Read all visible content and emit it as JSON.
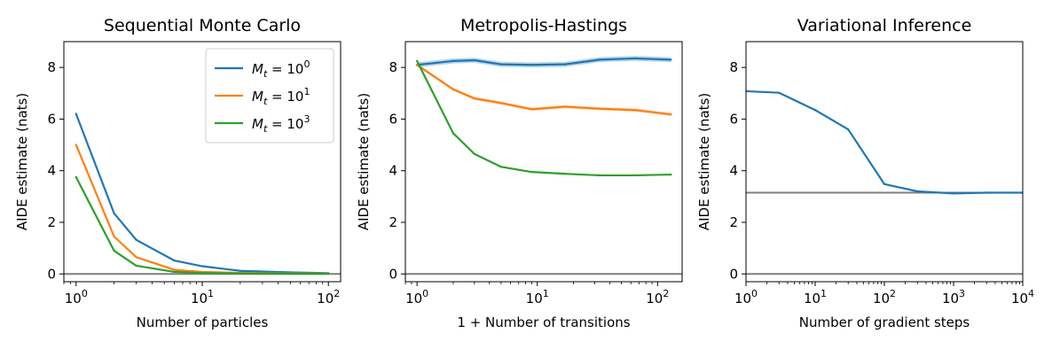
{
  "figure": {
    "colors": {
      "blue": "#1f77b4",
      "orange": "#ff7f0e",
      "green": "#2ca02c",
      "ref_line": "#7f7f7f"
    },
    "legend_location": "top-right of first panel"
  },
  "chart_data": [
    {
      "type": "line",
      "title": "Sequential Monte Carlo",
      "xlabel": "Number of particles",
      "ylabel": "AIDE estimate (nats)",
      "xscale": "log",
      "xlim": [
        0.8,
        125
      ],
      "ylim": [
        -0.3,
        9
      ],
      "yticks": [
        0,
        2,
        4,
        6,
        8
      ],
      "xticks": [
        {
          "value": 1,
          "base": "10",
          "exp": "0"
        },
        {
          "value": 10,
          "base": "10",
          "exp": "1"
        },
        {
          "value": 100,
          "base": "10",
          "exp": "2"
        }
      ],
      "reference_lines": [
        0
      ],
      "legend": {
        "entries": [
          {
            "label_prefix": "M",
            "label_sub": "t",
            "label_mid": " = 10",
            "label_sup": "0",
            "color": "#1f77b4"
          },
          {
            "label_prefix": "M",
            "label_sub": "t",
            "label_mid": " = 10",
            "label_sup": "1",
            "color": "#ff7f0e"
          },
          {
            "label_prefix": "M",
            "label_sub": "t",
            "label_mid": " = 10",
            "label_sup": "3",
            "color": "#2ca02c"
          }
        ]
      },
      "series": [
        {
          "color": "#1f77b4",
          "x": [
            1,
            2,
            3,
            6,
            10,
            20,
            50,
            100
          ],
          "y": [
            6.2,
            2.35,
            1.32,
            0.52,
            0.3,
            0.12,
            0.06,
            0.03
          ]
        },
        {
          "color": "#ff7f0e",
          "x": [
            1,
            2,
            3,
            6,
            10,
            20,
            50,
            100
          ],
          "y": [
            5.0,
            1.45,
            0.65,
            0.16,
            0.08,
            0.04,
            0.02,
            0.02
          ]
        },
        {
          "color": "#2ca02c",
          "x": [
            1,
            2,
            3,
            6,
            10,
            20,
            50,
            100
          ],
          "y": [
            3.75,
            0.9,
            0.32,
            0.08,
            0.04,
            0.02,
            0.01,
            0.01
          ]
        }
      ]
    },
    {
      "type": "line",
      "title": "Metropolis-Hastings",
      "xlabel": "1 + Number of transitions",
      "ylabel": "AIDE estimate (nats)",
      "xscale": "log",
      "xlim": [
        0.8,
        160
      ],
      "ylim": [
        -0.3,
        9
      ],
      "yticks": [
        0,
        2,
        4,
        6,
        8
      ],
      "xticks": [
        {
          "value": 1,
          "base": "10",
          "exp": "0"
        },
        {
          "value": 10,
          "base": "10",
          "exp": "1"
        },
        {
          "value": 100,
          "base": "10",
          "exp": "2"
        }
      ],
      "reference_lines": [
        0
      ],
      "series": [
        {
          "color": "#1f77b4",
          "band": 0.1,
          "x": [
            1,
            2,
            3,
            5,
            9,
            17,
            33,
            65,
            129
          ],
          "y": [
            8.1,
            8.25,
            8.28,
            8.12,
            8.1,
            8.12,
            8.3,
            8.35,
            8.3
          ]
        },
        {
          "color": "#ff7f0e",
          "band": 0.06,
          "x": [
            1,
            2,
            3,
            5,
            9,
            17,
            33,
            65,
            129
          ],
          "y": [
            8.1,
            7.15,
            6.8,
            6.62,
            6.38,
            6.48,
            6.4,
            6.35,
            6.18
          ]
        },
        {
          "color": "#2ca02c",
          "band": 0.03,
          "x": [
            1,
            2,
            3,
            5,
            9,
            17,
            33,
            65,
            129
          ],
          "y": [
            8.25,
            5.45,
            4.65,
            4.15,
            3.95,
            3.88,
            3.82,
            3.82,
            3.85
          ]
        }
      ]
    },
    {
      "type": "line",
      "title": "Variational Inference",
      "xlabel": "Number of gradient steps",
      "ylabel": "AIDE estimate (nats)",
      "xscale": "log",
      "xlim": [
        1,
        10000
      ],
      "ylim": [
        -0.3,
        9
      ],
      "yticks": [
        0,
        2,
        4,
        6,
        8
      ],
      "xticks": [
        {
          "value": 1,
          "base": "10",
          "exp": "0"
        },
        {
          "value": 10,
          "base": "10",
          "exp": "1"
        },
        {
          "value": 100,
          "base": "10",
          "exp": "2"
        },
        {
          "value": 1000,
          "base": "10",
          "exp": "3"
        },
        {
          "value": 10000,
          "base": "10",
          "exp": "4"
        }
      ],
      "reference_lines": [
        0,
        3.15
      ],
      "series": [
        {
          "color": "#1f77b4",
          "x": [
            1,
            3,
            10,
            30,
            100,
            300,
            1000,
            3000,
            10000
          ],
          "y": [
            7.08,
            7.02,
            6.35,
            5.6,
            3.48,
            3.2,
            3.12,
            3.15,
            3.15
          ]
        }
      ]
    }
  ]
}
